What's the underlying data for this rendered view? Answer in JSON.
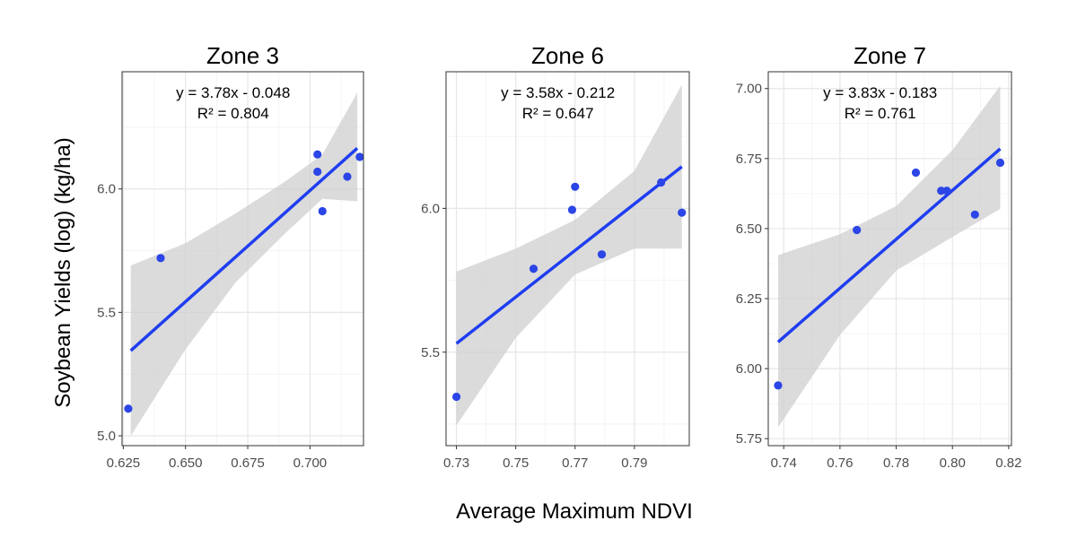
{
  "ylabel": "Soybean Yields (log) (kg/ha)",
  "xlabel": "Average Maximum NDVI",
  "chart_data": [
    {
      "type": "scatter",
      "title": "Zone 3",
      "equation": "y = 3.78x - 0.048",
      "r2": "R² = 0.804",
      "xlim": [
        0.6245,
        0.7215
      ],
      "ylim": [
        4.96,
        6.475
      ],
      "xticks": [
        0.625,
        0.65,
        0.675,
        0.7
      ],
      "xtick_labels": [
        "0.625",
        "0.650",
        "0.675",
        "0.700"
      ],
      "yticks": [
        5.0,
        5.5,
        6.0
      ],
      "ytick_labels": [
        "5.0",
        "5.5",
        "6.0"
      ],
      "points": [
        [
          0.627,
          5.11
        ],
        [
          0.64,
          5.72
        ],
        [
          0.703,
          6.14
        ],
        [
          0.703,
          6.07
        ],
        [
          0.705,
          5.91
        ],
        [
          0.715,
          6.05
        ],
        [
          0.72,
          6.13
        ]
      ],
      "fit": [
        [
          0.628,
          5.345
        ],
        [
          0.719,
          6.165
        ]
      ],
      "band_upper": [
        [
          0.628,
          5.69
        ],
        [
          0.65,
          5.78
        ],
        [
          0.67,
          5.9
        ],
        [
          0.69,
          6.03
        ],
        [
          0.705,
          6.14
        ],
        [
          0.719,
          6.39
        ]
      ],
      "band_lower": [
        [
          0.628,
          5.0
        ],
        [
          0.65,
          5.35
        ],
        [
          0.67,
          5.62
        ],
        [
          0.69,
          5.82
        ],
        [
          0.705,
          5.96
        ],
        [
          0.719,
          5.95
        ]
      ]
    },
    {
      "type": "scatter",
      "title": "Zone 6",
      "equation": "y = 3.58x - 0.212",
      "r2": "R² = 0.647",
      "xlim": [
        0.7265,
        0.8085
      ],
      "ylim": [
        5.175,
        6.475
      ],
      "xticks": [
        0.73,
        0.75,
        0.77,
        0.79
      ],
      "xtick_labels": [
        "0.73",
        "0.75",
        "0.77",
        "0.79"
      ],
      "yticks": [
        5.5,
        6.0
      ],
      "ytick_labels": [
        "5.5",
        "6.0"
      ],
      "points": [
        [
          0.73,
          5.345
        ],
        [
          0.756,
          5.79
        ],
        [
          0.769,
          5.995
        ],
        [
          0.77,
          6.075
        ],
        [
          0.779,
          5.84
        ],
        [
          0.799,
          6.09
        ],
        [
          0.806,
          5.985
        ]
      ],
      "fit": [
        [
          0.73,
          5.53
        ],
        [
          0.806,
          6.145
        ]
      ],
      "band_upper": [
        [
          0.73,
          5.78
        ],
        [
          0.75,
          5.86
        ],
        [
          0.77,
          5.96
        ],
        [
          0.79,
          6.13
        ],
        [
          0.806,
          6.43
        ]
      ],
      "band_lower": [
        [
          0.73,
          5.245
        ],
        [
          0.75,
          5.55
        ],
        [
          0.77,
          5.77
        ],
        [
          0.79,
          5.86
        ],
        [
          0.806,
          5.86
        ]
      ]
    },
    {
      "type": "scatter",
      "title": "Zone 7",
      "equation": "y = 3.83x - 0.183",
      "r2": "R² = 0.761",
      "xlim": [
        0.7345,
        0.821
      ],
      "ylim": [
        5.725,
        7.06
      ],
      "xticks": [
        0.74,
        0.76,
        0.78,
        0.8,
        0.82
      ],
      "xtick_labels": [
        "0.74",
        "0.76",
        "0.78",
        "0.80",
        "0.82"
      ],
      "yticks": [
        5.75,
        6.0,
        6.25,
        6.5,
        6.75,
        7.0
      ],
      "ytick_labels": [
        "5.75",
        "6.00",
        "6.25",
        "6.50",
        "6.75",
        "7.00"
      ],
      "points": [
        [
          0.738,
          5.94
        ],
        [
          0.766,
          6.495
        ],
        [
          0.787,
          6.7
        ],
        [
          0.796,
          6.635
        ],
        [
          0.798,
          6.635
        ],
        [
          0.808,
          6.55
        ],
        [
          0.817,
          6.735
        ]
      ],
      "fit": [
        [
          0.738,
          6.095
        ],
        [
          0.817,
          6.785
        ]
      ],
      "band_upper": [
        [
          0.738,
          6.405
        ],
        [
          0.76,
          6.48
        ],
        [
          0.78,
          6.58
        ],
        [
          0.8,
          6.78
        ],
        [
          0.817,
          7.01
        ]
      ],
      "band_lower": [
        [
          0.738,
          5.79
        ],
        [
          0.76,
          6.12
        ],
        [
          0.78,
          6.35
        ],
        [
          0.8,
          6.47
        ],
        [
          0.817,
          6.57
        ]
      ]
    }
  ]
}
